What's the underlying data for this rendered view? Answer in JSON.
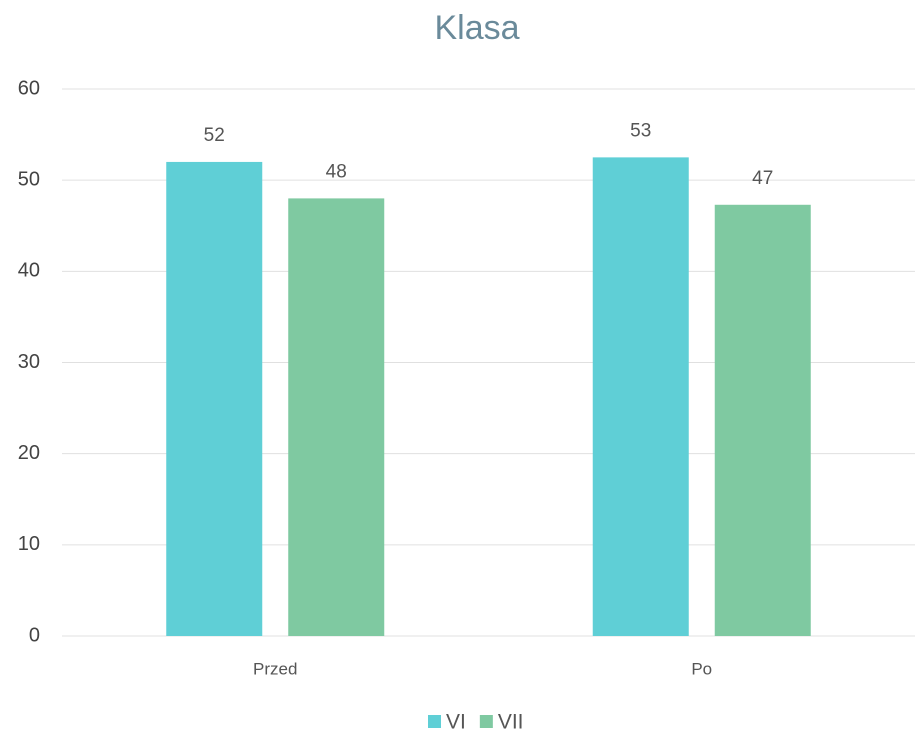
{
  "chart_data": {
    "type": "bar",
    "title": "Klasa",
    "categories": [
      "Przed",
      "Po"
    ],
    "series": [
      {
        "name": "VI",
        "color": "#5fcfd6",
        "values": [
          52,
          52.5
        ],
        "value_labels": [
          "52",
          "53"
        ]
      },
      {
        "name": "VII",
        "color": "#7fc9a1",
        "values": [
          48,
          47.3
        ],
        "value_labels": [
          "48",
          "47"
        ]
      }
    ],
    "ylim": [
      0,
      60
    ],
    "yticks": [
      0,
      10,
      20,
      30,
      40,
      50,
      60
    ],
    "grid": true,
    "legend": "bottom"
  }
}
